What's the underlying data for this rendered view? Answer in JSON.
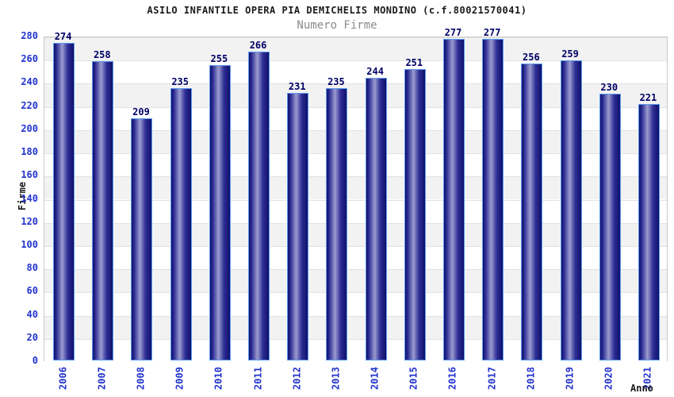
{
  "chart_data": {
    "type": "bar",
    "title": "ASILO INFANTILE OPERA PIA DEMICHELIS MONDINO (c.f.80021570041)",
    "subtitle": "Numero Firme",
    "xlabel": "Anno",
    "ylabel": "Firme",
    "ylim": [
      0,
      280
    ],
    "y_tick_step": 20,
    "y_tick_labels": [
      "0",
      "20",
      "40",
      "60",
      "80",
      "100",
      "120",
      "140",
      "160",
      "180",
      "200",
      "220",
      "240",
      "260",
      "280"
    ],
    "categories": [
      "2006",
      "2007",
      "2008",
      "2009",
      "2010",
      "2011",
      "2012",
      "2013",
      "2014",
      "2015",
      "2016",
      "2017",
      "2018",
      "2019",
      "2020",
      "2021"
    ],
    "values": [
      274,
      258,
      209,
      235,
      255,
      266,
      231,
      235,
      244,
      251,
      277,
      277,
      256,
      259,
      230,
      221
    ],
    "grid": "horizontal-bands-every-20",
    "legend": "none"
  },
  "colors": {
    "title_text": "#1a1a1a",
    "subtitle_text": "#8a8a8a",
    "axis_tick_text": "#2233cc",
    "value_label_text": "#000066",
    "band_gray": "#f2f2f2",
    "band_white": "#ffffff",
    "band_edge": "#e2e2e2",
    "frame": "#c9c9c9",
    "bar_outline": "#5b9cf0",
    "bar_dark": "#10106a",
    "bar_mid": "#2e2e96",
    "bar_light": "#9c9cd0"
  }
}
